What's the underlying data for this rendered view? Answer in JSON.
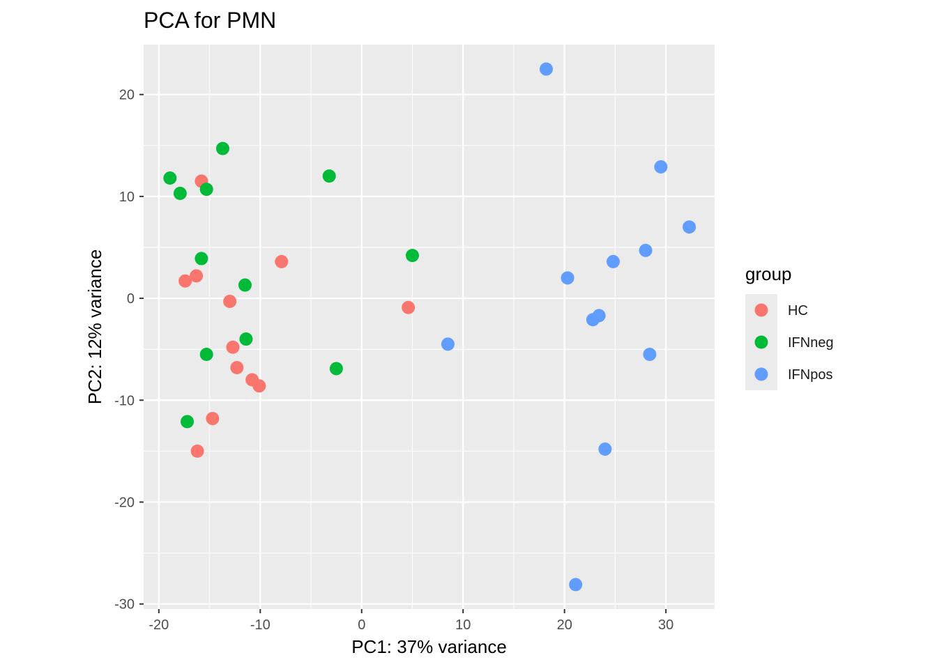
{
  "chart_data": {
    "type": "scatter",
    "title": "PCA for PMN",
    "xlabel": "PC1: 37% variance",
    "ylabel": "PC2: 12% variance",
    "xlim": [
      -21.5,
      34.8
    ],
    "ylim": [
      -30.5,
      24.9
    ],
    "xticks": [
      -20,
      -10,
      0,
      10,
      20,
      30
    ],
    "yticks": [
      -30,
      -20,
      -10,
      0,
      10,
      20
    ],
    "xtick_labels": [
      "-20",
      "-10",
      "0",
      "10",
      "20",
      "30"
    ],
    "ytick_labels": [
      "-30",
      "-20",
      "-10",
      "0",
      "10",
      "20"
    ],
    "grid": true,
    "legend": {
      "title": "group",
      "position": "right"
    },
    "series": [
      {
        "name": "HC",
        "color": "#F8766D",
        "points": [
          [
            -15.8,
            11.5
          ],
          [
            -16.3,
            2.2
          ],
          [
            -17.4,
            1.7
          ],
          [
            -13.0,
            -0.3
          ],
          [
            -12.7,
            -4.8
          ],
          [
            -12.3,
            -6.8
          ],
          [
            -10.8,
            -8.0
          ],
          [
            -10.1,
            -8.6
          ],
          [
            -14.7,
            -11.8
          ],
          [
            -16.2,
            -15.0
          ],
          [
            -7.9,
            3.6
          ],
          [
            4.6,
            -0.9
          ]
        ]
      },
      {
        "name": "IFNneg",
        "color": "#00BA38",
        "points": [
          [
            -18.9,
            11.8
          ],
          [
            -17.9,
            10.3
          ],
          [
            -15.3,
            10.7
          ],
          [
            -13.7,
            14.7
          ],
          [
            -15.8,
            3.9
          ],
          [
            -11.5,
            1.3
          ],
          [
            -11.4,
            -4.0
          ],
          [
            -15.3,
            -5.5
          ],
          [
            -17.2,
            -12.1
          ],
          [
            -3.2,
            12.0
          ],
          [
            5.0,
            4.2
          ],
          [
            -2.5,
            -6.9
          ]
        ]
      },
      {
        "name": "IFNpos",
        "color": "#619CFF",
        "points": [
          [
            18.2,
            22.5
          ],
          [
            29.5,
            12.9
          ],
          [
            32.3,
            7.0
          ],
          [
            28.0,
            4.7
          ],
          [
            24.8,
            3.6
          ],
          [
            20.3,
            2.0
          ],
          [
            23.4,
            -1.7
          ],
          [
            22.8,
            -2.1
          ],
          [
            8.5,
            -4.5
          ],
          [
            28.4,
            -5.5
          ],
          [
            24.0,
            -14.8
          ],
          [
            21.1,
            -28.1
          ]
        ]
      }
    ]
  }
}
